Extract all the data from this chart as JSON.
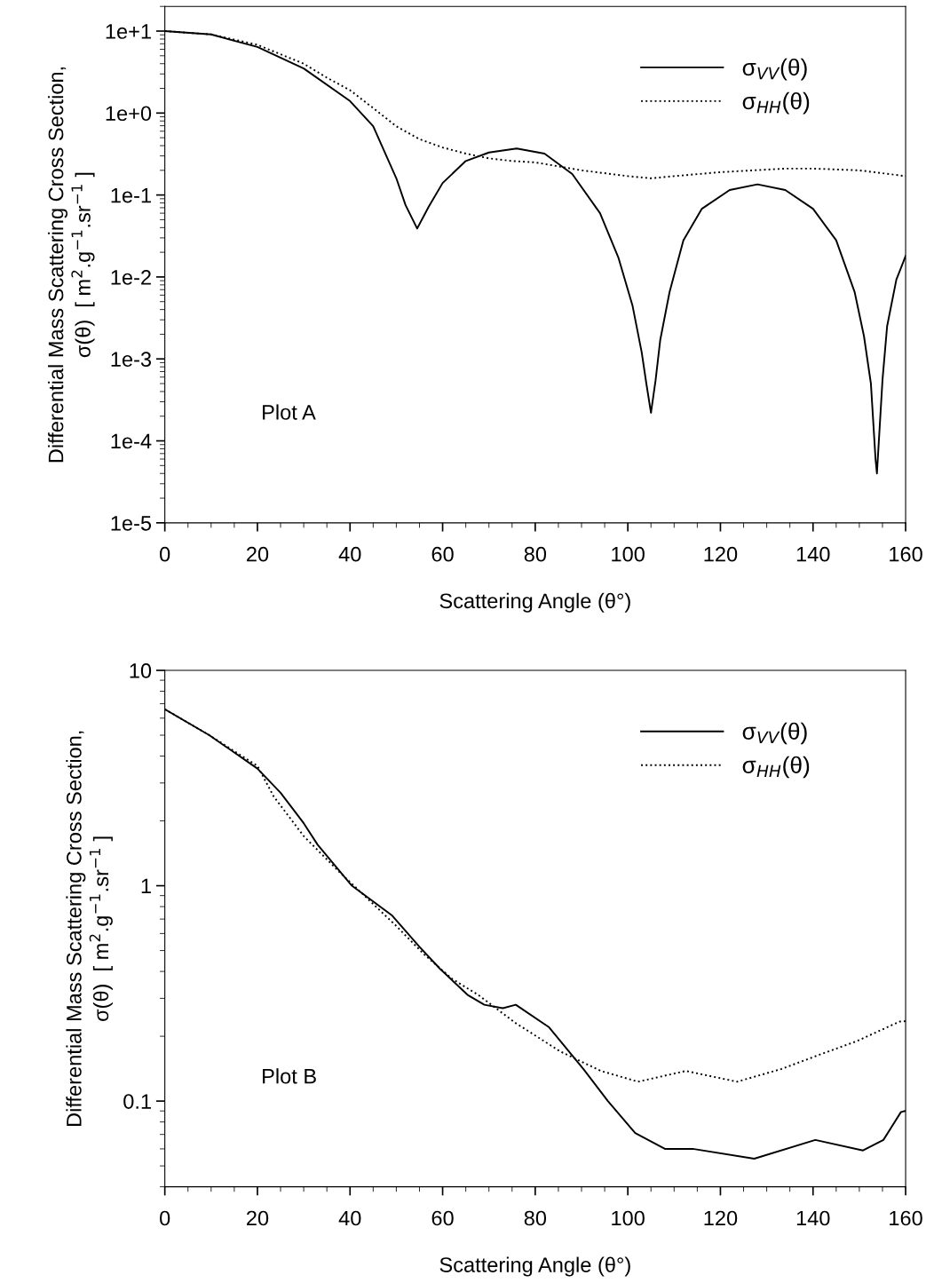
{
  "chart_data": [
    {
      "type": "line",
      "xlabel": "Scattering Angle (θ°)",
      "ylabel": "Differential Mass Scattering Cross Section,\nσ(θ)  [ m$^{2}$.g$^{−1}$.sr$^{−1}$ ]",
      "annotations": [
        "Plot A"
      ],
      "log": "y",
      "xlim": [
        0,
        160
      ],
      "xticks": [
        0,
        20,
        40,
        60,
        80,
        100,
        120,
        140,
        160
      ],
      "ylim": [
        1e-05,
        20
      ],
      "yticks": [
        {
          "value": 1e-05,
          "label": "1e-5"
        },
        {
          "value": 0.0001,
          "label": "1e-4"
        },
        {
          "value": 0.001,
          "label": "1e-3"
        },
        {
          "value": 0.01,
          "label": "1e-2"
        },
        {
          "value": 0.1,
          "label": "1e-1"
        },
        {
          "value": 1,
          "label": "1e+0"
        },
        {
          "value": 10,
          "label": "1e+1"
        }
      ],
      "legend": "top right",
      "grid": false,
      "series": [
        {
          "name": "σ$_{VV}$(θ)",
          "color": "#000000",
          "line_style": "solid",
          "x": [
            0,
            10,
            20,
            30,
            40,
            45,
            50,
            52,
            54.5,
            57,
            60,
            65,
            70,
            76,
            82,
            88,
            94,
            98,
            101,
            103,
            104,
            105,
            106,
            107,
            109,
            112,
            116,
            122,
            128,
            134,
            140,
            145,
            149,
            151,
            152.5,
            153.5,
            153.8,
            155,
            156,
            158,
            160
          ],
          "values": [
            10,
            9.1,
            6.4,
            3.5,
            1.4,
            0.69,
            0.16,
            0.075,
            0.039,
            0.072,
            0.14,
            0.26,
            0.33,
            0.37,
            0.32,
            0.18,
            0.06,
            0.017,
            0.0045,
            0.0012,
            0.0005,
            0.00022,
            0.00055,
            0.0017,
            0.0065,
            0.028,
            0.068,
            0.115,
            0.135,
            0.115,
            0.068,
            0.028,
            0.0065,
            0.0019,
            0.0005,
            6e-05,
            4e-05,
            0.00055,
            0.0025,
            0.0093,
            0.018
          ]
        },
        {
          "name": "σ$_{HH}$(θ)",
          "color": "#000000",
          "line_style": "dotted",
          "x": [
            0,
            10,
            20,
            30,
            35,
            40,
            45,
            50,
            55,
            60,
            65,
            70,
            75,
            80,
            90,
            100,
            105,
            110,
            120,
            134,
            140,
            150,
            160
          ],
          "values": [
            10,
            9.1,
            6.8,
            4.0,
            2.7,
            1.9,
            1.15,
            0.69,
            0.48,
            0.38,
            0.32,
            0.28,
            0.26,
            0.25,
            0.2,
            0.17,
            0.16,
            0.17,
            0.19,
            0.21,
            0.21,
            0.2,
            0.17
          ]
        }
      ]
    },
    {
      "type": "line",
      "xlabel": "Scattering Angle (θ°)",
      "ylabel": "Differential Mass Scattering Cross Section,\nσ(θ)  [ m$^{2}$.g$^{−1}$.sr$^{−1}$ ]",
      "annotations": [
        "Plot B"
      ],
      "log": "y",
      "xlim": [
        0,
        160
      ],
      "xticks": [
        0,
        20,
        40,
        60,
        80,
        100,
        120,
        140,
        160
      ],
      "ylim": [
        0.04,
        10
      ],
      "yticks": [
        0.1,
        1,
        10
      ],
      "legend": "top right",
      "grid": false,
      "series": [
        {
          "name": "σ$_{VV}$(θ)",
          "color": "#000000",
          "line_style": "solid",
          "x": [
            0,
            9.6,
            20,
            25,
            30,
            33,
            40.4,
            49,
            55,
            59.5,
            65.5,
            69,
            73,
            75.8,
            83,
            90.5,
            95.7,
            101.6,
            108,
            114,
            127.3,
            140.5,
            150.8,
            155.2,
            159,
            160
          ],
          "values": [
            6.6,
            5.0,
            3.5,
            2.7,
            1.95,
            1.55,
            1.0,
            0.73,
            0.52,
            0.41,
            0.31,
            0.28,
            0.27,
            0.28,
            0.22,
            0.14,
            0.1,
            0.071,
            0.06,
            0.06,
            0.054,
            0.066,
            0.059,
            0.066,
            0.089,
            0.09
          ]
        },
        {
          "name": "σ$_{HH}$(θ)",
          "color": "#000000",
          "line_style": "dotted",
          "x": [
            0,
            9.6,
            20,
            23.5,
            30,
            37.5,
            50,
            56,
            62,
            67.8,
            75.8,
            78.7,
            85.4,
            94.2,
            102.2,
            112.5,
            123.6,
            133.2,
            142,
            149.5,
            158.7,
            160
          ],
          "values": [
            6.6,
            5.0,
            3.6,
            2.6,
            1.7,
            1.17,
            0.65,
            0.48,
            0.37,
            0.31,
            0.23,
            0.21,
            0.17,
            0.138,
            0.123,
            0.138,
            0.123,
            0.141,
            0.166,
            0.19,
            0.234,
            0.235
          ]
        }
      ]
    }
  ]
}
